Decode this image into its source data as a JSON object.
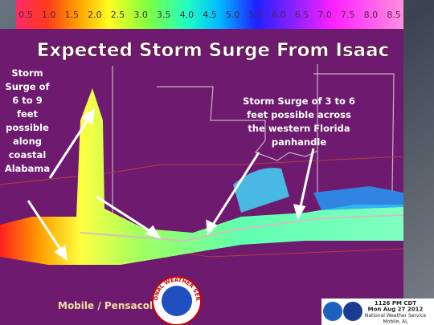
{
  "legend": {
    "labels": [
      "0.5",
      "1.0",
      "1.5",
      "2.0",
      "2.5",
      "3.0",
      "3.5",
      "4.0",
      "4.5",
      "5.0",
      "5.5",
      "6.0",
      "6.5",
      "7.0",
      "7.5",
      "8.0",
      "8.5"
    ]
  },
  "title": "Expected Storm Surge From Isaac",
  "annotations": [
    {
      "lines": [
        "Storm",
        "Surge of",
        "6 to 9",
        "feet",
        "possible",
        "along",
        "coastal",
        "Alabama"
      ]
    },
    {
      "lines": [
        "Storm Surge of 3 to 6",
        "feet possible across",
        "the western Florida",
        "panhandle"
      ]
    }
  ],
  "footer": {
    "office": "Mobile / Pensacola",
    "logo": "NATIONAL WEATHER SERVICE",
    "timestamp": [
      "1126 PM CDT",
      "Mon Aug 27 2012",
      "National Weather Service",
      "Mobile, AL"
    ]
  }
}
